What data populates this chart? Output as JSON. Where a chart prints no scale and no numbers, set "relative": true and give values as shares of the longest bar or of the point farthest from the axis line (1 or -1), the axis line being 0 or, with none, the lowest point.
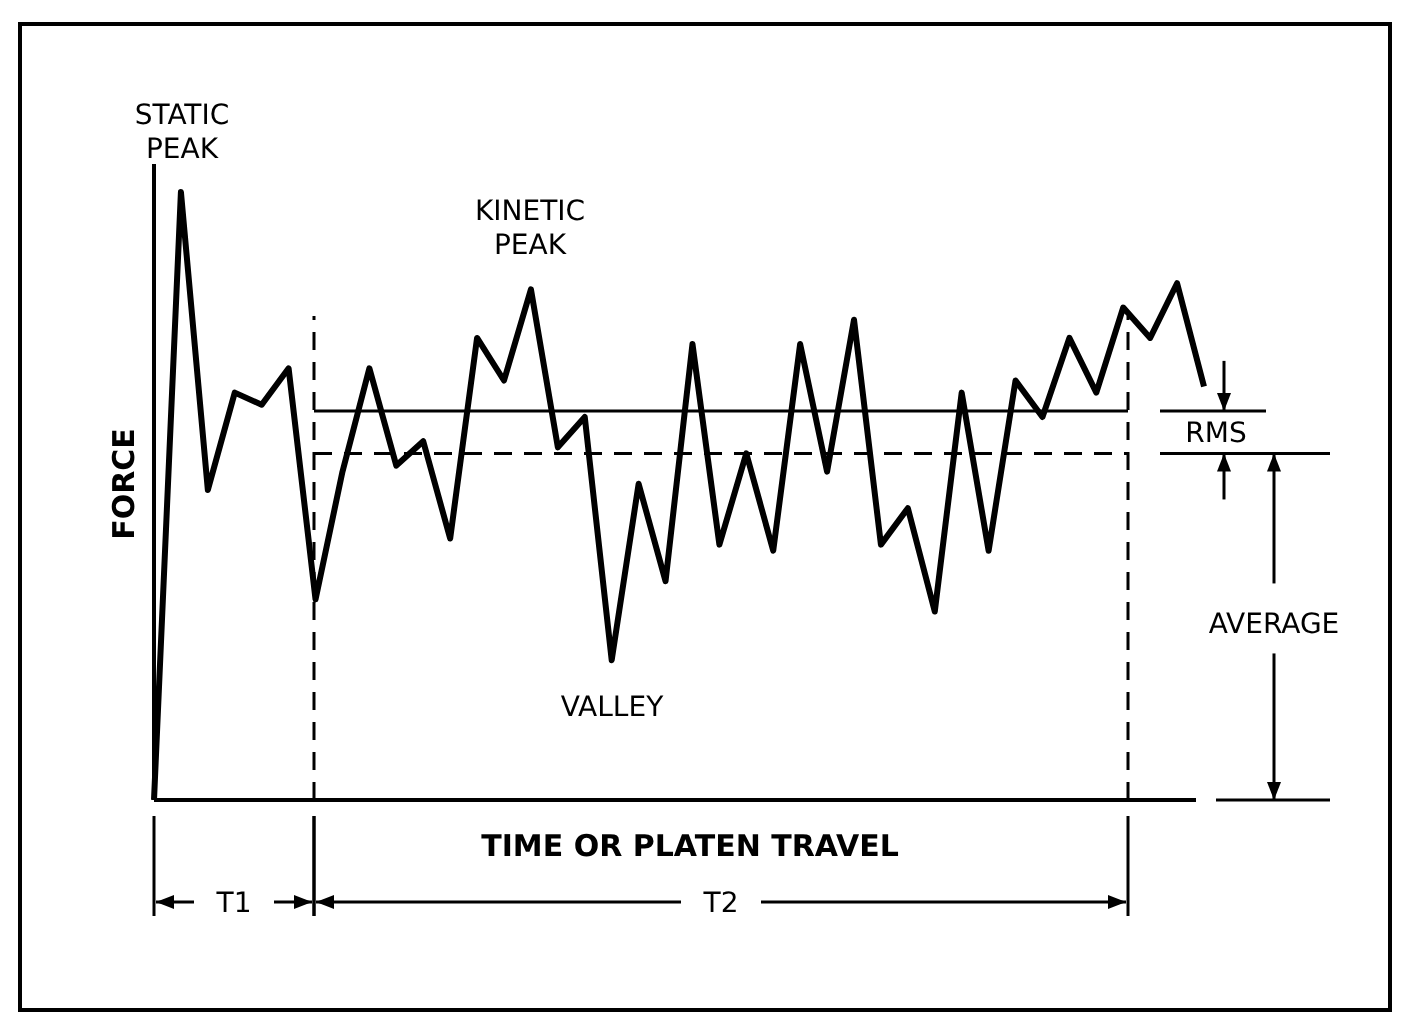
{
  "chart_data": {
    "type": "line",
    "relative": true,
    "xlabel": "TIME OR PLATEN TRAVEL",
    "ylabel": "FORCE",
    "marker": "none",
    "line_style": "solid",
    "categories": [
      null,
      null,
      null,
      null,
      null,
      null,
      null,
      null,
      null,
      null,
      null,
      null,
      null,
      null,
      null,
      null,
      null,
      null,
      null,
      null,
      null,
      null,
      null,
      null,
      null,
      null,
      null,
      null,
      null,
      null,
      null,
      null,
      null,
      null,
      null,
      null,
      null,
      null,
      null,
      null
    ],
    "series": [
      {
        "color": "#000000",
        "values": [
          0,
          1,
          0.51,
          0.67,
          0.65,
          0.71,
          0.33,
          0.54,
          0.71,
          0.55,
          0.59,
          0.43,
          0.76,
          0.69,
          0.84,
          0.58,
          0.63,
          0.23,
          0.52,
          0.36,
          0.75,
          0.42,
          0.57,
          0.41,
          0.75,
          0.54,
          0.79,
          0.42,
          0.48,
          0.31,
          0.67,
          0.41,
          0.69,
          0.63,
          0.76,
          0.67,
          0.81,
          0.76,
          0.85,
          0.68
        ]
      }
    ],
    "ref_lines": [
      {
        "axis": "y",
        "value": 0.64,
        "label": "RMS",
        "color": "#000000",
        "line_style": "solid"
      },
      {
        "axis": "y",
        "value": 0.57,
        "color": "#000000",
        "line_style": "dashed"
      }
    ],
    "annotations": [
      "STATIC PEAK",
      "KINETIC PEAK",
      "VALLEY",
      "T1",
      "T2",
      "AVERAGE"
    ]
  }
}
